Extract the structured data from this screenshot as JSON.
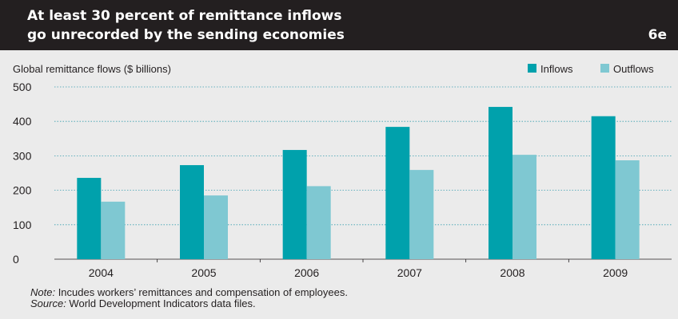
{
  "header": {
    "title": "At least 30 percent of remittance inflows\ngo unrecorded by the sending economies",
    "figure_number": "6e"
  },
  "notes": {
    "note_lead": "Note:",
    "note_text": " Incudes workers’ remittances and compensation of employees.",
    "source_lead": "Source:",
    "source_text": " World Development Indicators data files."
  },
  "colors": {
    "header_bg": "#231f20",
    "inflows": "#00a1ac",
    "outflows": "#7fc8d2",
    "gridline": "#3a9fb0"
  },
  "chart_data": {
    "type": "bar",
    "ylabel": "Global remittance flows ($ billions)",
    "categories": [
      "2004",
      "2005",
      "2006",
      "2007",
      "2008",
      "2009"
    ],
    "series": [
      {
        "name": "Inflows",
        "values": [
          236,
          273,
          317,
          384,
          442,
          415
        ]
      },
      {
        "name": "Outflows",
        "values": [
          167,
          185,
          212,
          259,
          303,
          287
        ]
      }
    ],
    "ylim": [
      0,
      500
    ],
    "yticks": [
      0,
      100,
      200,
      300,
      400,
      500
    ],
    "grid": true,
    "legend": "top-right"
  }
}
